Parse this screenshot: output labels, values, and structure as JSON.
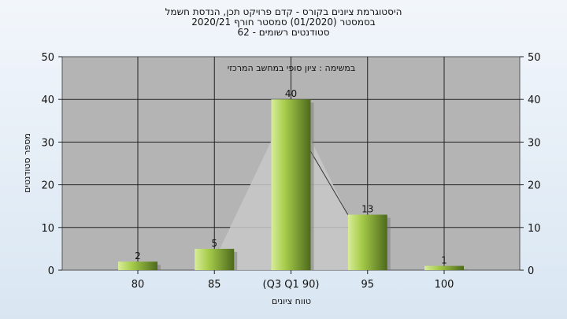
{
  "titles": {
    "line1": "היסטוגרמת ציונים בקורס - קדם פרויקט תכן, הנדסת חשמל",
    "line2": "בסמסטר  (01/2020)  סמסטר חורף  2020/21",
    "line3": "סטודנטים רשומים - 62"
  },
  "chart_data": {
    "type": "bar",
    "subtitle": "במשימה : ציון סופי במחשב המרכזי",
    "categories": [
      "80",
      "85",
      "(Q3 Q1 90)",
      "95",
      "100"
    ],
    "values": [
      2,
      5,
      40,
      13,
      1
    ],
    "ylim": [
      0,
      50
    ],
    "yticks": [
      0,
      10,
      20,
      30,
      40,
      50
    ],
    "xlabel": "טווח ציונים",
    "ylabel": "מספר סטודנטים",
    "grid": true,
    "legend": "none",
    "colors": {
      "plot_bg": "#b4b4b4",
      "bar_light": "#d8ec9a",
      "bar_mid": "#9cc442",
      "bar_dark": "#4d6a1c",
      "overlay": "#c8c8c8"
    }
  }
}
